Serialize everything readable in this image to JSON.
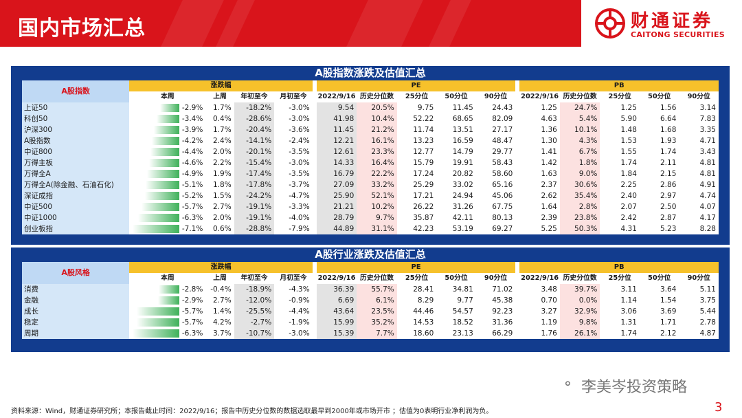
{
  "header": {
    "title": "国内市场汇总"
  },
  "logo": {
    "cn": "财通证券",
    "en": "CAITONG SECURITIES"
  },
  "table1": {
    "title": "A股指数涨跌及估值汇总",
    "cat": "A股指数",
    "group_change": "涨跌幅",
    "group_pe": "PE",
    "group_pb": "PB",
    "cols": [
      "本周",
      "上周",
      "年初至今",
      "月初至今",
      "2022/9/16",
      "历史分位数",
      "25分位",
      "50分位",
      "90分位",
      "2022/9/16",
      "历史分位数",
      "25分位",
      "50分位",
      "90分位"
    ],
    "rows": [
      {
        "name": "上证50",
        "w": -2.9,
        "c": [
          "-2.9%",
          "1.7%",
          "-18.2%",
          "-3.0%",
          "9.54",
          "20.5%",
          "9.75",
          "11.45",
          "24.43",
          "1.25",
          "24.7%",
          "1.25",
          "1.56",
          "3.14"
        ]
      },
      {
        "name": "科创50",
        "w": -3.4,
        "c": [
          "-3.4%",
          "0.4%",
          "-28.6%",
          "-3.0%",
          "41.98",
          "10.4%",
          "52.22",
          "68.65",
          "82.09",
          "4.63",
          "5.4%",
          "5.90",
          "6.64",
          "7.83"
        ]
      },
      {
        "name": "沪深300",
        "w": -3.9,
        "c": [
          "-3.9%",
          "1.7%",
          "-20.4%",
          "-3.6%",
          "11.45",
          "21.2%",
          "11.74",
          "13.51",
          "27.17",
          "1.36",
          "10.1%",
          "1.48",
          "1.68",
          "3.35"
        ]
      },
      {
        "name": "A股指数",
        "w": -4.2,
        "c": [
          "-4.2%",
          "2.4%",
          "-14.1%",
          "-2.4%",
          "12.21",
          "16.1%",
          "13.23",
          "16.59",
          "48.47",
          "1.30",
          "4.3%",
          "1.53",
          "1.93",
          "4.71"
        ]
      },
      {
        "name": "中证800",
        "w": -4.4,
        "c": [
          "-4.4%",
          "2.0%",
          "-20.1%",
          "-3.5%",
          "12.61",
          "23.3%",
          "12.77",
          "14.79",
          "29.77",
          "1.41",
          "6.7%",
          "1.55",
          "1.74",
          "3.43"
        ]
      },
      {
        "name": "万得主板",
        "w": -4.6,
        "c": [
          "-4.6%",
          "2.2%",
          "-15.4%",
          "-3.0%",
          "14.33",
          "16.4%",
          "15.79",
          "19.91",
          "58.43",
          "1.42",
          "1.8%",
          "1.74",
          "2.11",
          "4.81"
        ]
      },
      {
        "name": "万得全A",
        "w": -4.9,
        "c": [
          "-4.9%",
          "1.9%",
          "-17.4%",
          "-3.5%",
          "16.79",
          "22.2%",
          "17.24",
          "20.82",
          "58.60",
          "1.63",
          "9.0%",
          "1.84",
          "2.15",
          "4.81"
        ]
      },
      {
        "name": "万得全A(除金融、石油石化)",
        "w": -5.1,
        "c": [
          "-5.1%",
          "1.8%",
          "-17.8%",
          "-3.7%",
          "27.09",
          "33.2%",
          "25.29",
          "33.02",
          "65.16",
          "2.37",
          "30.6%",
          "2.25",
          "2.86",
          "4.91"
        ]
      },
      {
        "name": "深证成指",
        "w": -5.2,
        "c": [
          "-5.2%",
          "1.5%",
          "-24.2%",
          "-4.7%",
          "25.90",
          "52.1%",
          "17.21",
          "24.94",
          "45.06",
          "2.62",
          "35.4%",
          "2.40",
          "2.97",
          "4.74"
        ]
      },
      {
        "name": "中证500",
        "w": -5.7,
        "c": [
          "-5.7%",
          "2.7%",
          "-19.1%",
          "-3.3%",
          "21.21",
          "10.2%",
          "26.22",
          "31.26",
          "67.75",
          "1.64",
          "2.8%",
          "2.07",
          "2.50",
          "4.07"
        ]
      },
      {
        "name": "中证1000",
        "w": -6.3,
        "c": [
          "-6.3%",
          "2.0%",
          "-19.1%",
          "-4.0%",
          "28.79",
          "9.7%",
          "35.87",
          "42.11",
          "80.13",
          "2.39",
          "23.8%",
          "2.42",
          "2.87",
          "4.17"
        ]
      },
      {
        "name": "创业板指",
        "w": -7.1,
        "c": [
          "-7.1%",
          "0.6%",
          "-28.8%",
          "-7.9%",
          "44.89",
          "31.1%",
          "42.23",
          "53.19",
          "69.27",
          "5.25",
          "50.3%",
          "4.31",
          "5.23",
          "8.28"
        ]
      }
    ]
  },
  "table2": {
    "title": "A股行业涨跌及估值汇总",
    "cat": "A股风格",
    "group_change": "涨跌幅",
    "group_pe": "PE",
    "group_pb": "PB",
    "cols": [
      "本周",
      "上周",
      "年初至今",
      "月初至今",
      "2022/9/16",
      "历史分位数",
      "25分位",
      "50分位",
      "90分位",
      "2022/9/16",
      "历史分位数",
      "25分位",
      "50分位",
      "90分位"
    ],
    "rows": [
      {
        "name": "消费",
        "w": -2.8,
        "c": [
          "-2.8%",
          "-0.4%",
          "-18.9%",
          "-4.3%",
          "36.39",
          "55.7%",
          "28.41",
          "34.81",
          "71.02",
          "3.48",
          "39.7%",
          "3.11",
          "3.64",
          "5.11"
        ]
      },
      {
        "name": "金融",
        "w": -2.9,
        "c": [
          "-2.9%",
          "2.7%",
          "-12.0%",
          "-0.9%",
          "6.69",
          "6.1%",
          "8.29",
          "9.77",
          "45.38",
          "0.70",
          "0.0%",
          "1.14",
          "1.54",
          "3.75"
        ]
      },
      {
        "name": "成长",
        "w": -5.7,
        "c": [
          "-5.7%",
          "1.4%",
          "-25.5%",
          "-4.4%",
          "43.64",
          "23.5%",
          "44.46",
          "54.57",
          "92.23",
          "3.27",
          "32.9%",
          "3.06",
          "3.69",
          "5.44"
        ]
      },
      {
        "name": "稳定",
        "w": -5.7,
        "c": [
          "-5.7%",
          "4.2%",
          "-2.7%",
          "-1.9%",
          "15.99",
          "35.2%",
          "14.53",
          "18.52",
          "31.36",
          "1.19",
          "9.8%",
          "1.31",
          "1.71",
          "2.78"
        ]
      },
      {
        "name": "周期",
        "w": -6.3,
        "c": [
          "-6.3%",
          "3.7%",
          "-10.7%",
          "-3.0%",
          "15.39",
          "7.7%",
          "18.60",
          "23.13",
          "66.29",
          "1.76",
          "26.1%",
          "1.74",
          "2.12",
          "4.87"
        ]
      }
    ]
  },
  "watermark": "李美岑投资策略",
  "footer": "资料来源：Wind，财通证券研究所；本报告截止时间：2022/9/16；报告中历史分位数的数据选取最早到2000年或市场开市 ；估值为0表明行业净利润为负。",
  "page": "3",
  "colors": {
    "red": "#d9141b",
    "navy": "#123c8e",
    "gold": "#f6c12b",
    "green": "#3fb15a"
  }
}
